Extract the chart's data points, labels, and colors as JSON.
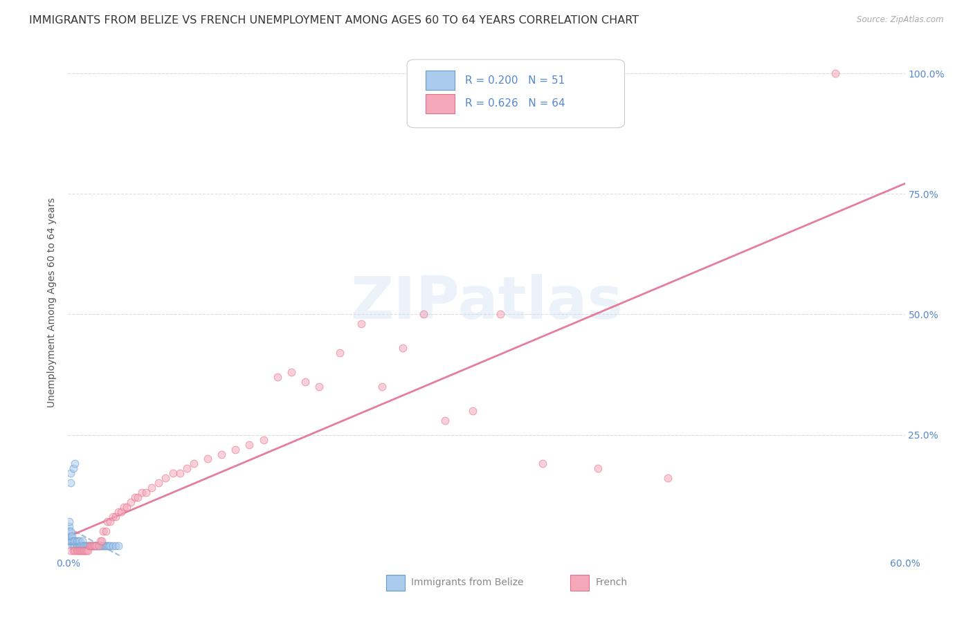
{
  "title": "IMMIGRANTS FROM BELIZE VS FRENCH UNEMPLOYMENT AMONG AGES 60 TO 64 YEARS CORRELATION CHART",
  "source": "Source: ZipAtlas.com",
  "ylabel": "Unemployment Among Ages 60 to 64 years",
  "xlim": [
    0.0,
    0.6
  ],
  "ylim": [
    0.0,
    1.05
  ],
  "xticks": [
    0.0,
    0.1,
    0.2,
    0.3,
    0.4,
    0.5,
    0.6
  ],
  "xtick_labels": [
    "0.0%",
    "",
    "",
    "",
    "",
    "",
    "60.0%"
  ],
  "yticks": [
    0.0,
    0.25,
    0.5,
    0.75,
    1.0
  ],
  "ytick_labels_right": [
    "",
    "25.0%",
    "50.0%",
    "75.0%",
    "100.0%"
  ],
  "legend_entries": [
    {
      "label": "Immigrants from Belize",
      "R": "0.200",
      "N": "51",
      "color": "#aacbee",
      "edge_color": "#6699cc"
    },
    {
      "label": "French",
      "R": "0.626",
      "N": "64",
      "color": "#f5a8ba",
      "edge_color": "#e0708a"
    }
  ],
  "belize_x": [
    0.001,
    0.001,
    0.001,
    0.001,
    0.001,
    0.002,
    0.002,
    0.002,
    0.002,
    0.002,
    0.003,
    0.003,
    0.003,
    0.004,
    0.004,
    0.004,
    0.005,
    0.005,
    0.005,
    0.006,
    0.006,
    0.007,
    0.007,
    0.008,
    0.008,
    0.009,
    0.01,
    0.01,
    0.011,
    0.012,
    0.013,
    0.014,
    0.015,
    0.016,
    0.017,
    0.018,
    0.019,
    0.02,
    0.021,
    0.022,
    0.023,
    0.024,
    0.025,
    0.026,
    0.027,
    0.028,
    0.029,
    0.03,
    0.032,
    0.034,
    0.036
  ],
  "belize_y": [
    0.03,
    0.04,
    0.05,
    0.06,
    0.07,
    0.03,
    0.04,
    0.05,
    0.15,
    0.17,
    0.02,
    0.03,
    0.04,
    0.02,
    0.03,
    0.18,
    0.02,
    0.03,
    0.19,
    0.02,
    0.03,
    0.02,
    0.03,
    0.02,
    0.03,
    0.02,
    0.02,
    0.03,
    0.02,
    0.02,
    0.02,
    0.02,
    0.02,
    0.02,
    0.02,
    0.02,
    0.02,
    0.02,
    0.02,
    0.02,
    0.02,
    0.02,
    0.02,
    0.02,
    0.02,
    0.02,
    0.02,
    0.02,
    0.02,
    0.02,
    0.02
  ],
  "french_x": [
    0.002,
    0.004,
    0.005,
    0.006,
    0.007,
    0.008,
    0.009,
    0.01,
    0.011,
    0.012,
    0.013,
    0.014,
    0.015,
    0.016,
    0.017,
    0.018,
    0.019,
    0.02,
    0.022,
    0.023,
    0.024,
    0.025,
    0.027,
    0.028,
    0.03,
    0.032,
    0.034,
    0.036,
    0.038,
    0.04,
    0.042,
    0.045,
    0.048,
    0.05,
    0.053,
    0.056,
    0.06,
    0.065,
    0.07,
    0.075,
    0.08,
    0.085,
    0.09,
    0.1,
    0.11,
    0.12,
    0.13,
    0.14,
    0.15,
    0.16,
    0.17,
    0.18,
    0.195,
    0.21,
    0.225,
    0.24,
    0.255,
    0.27,
    0.29,
    0.31,
    0.34,
    0.38,
    0.43,
    0.55
  ],
  "french_y": [
    0.01,
    0.01,
    0.01,
    0.01,
    0.01,
    0.01,
    0.01,
    0.01,
    0.01,
    0.01,
    0.01,
    0.01,
    0.02,
    0.02,
    0.02,
    0.02,
    0.02,
    0.02,
    0.02,
    0.03,
    0.03,
    0.05,
    0.05,
    0.07,
    0.07,
    0.08,
    0.08,
    0.09,
    0.09,
    0.1,
    0.1,
    0.11,
    0.12,
    0.12,
    0.13,
    0.13,
    0.14,
    0.15,
    0.16,
    0.17,
    0.17,
    0.18,
    0.19,
    0.2,
    0.21,
    0.22,
    0.23,
    0.24,
    0.37,
    0.38,
    0.36,
    0.35,
    0.42,
    0.48,
    0.35,
    0.43,
    0.5,
    0.28,
    0.3,
    0.5,
    0.19,
    0.18,
    0.16,
    1.0
  ],
  "belize_trendline_color": "#88aacc",
  "belize_trendline_style": "--",
  "french_trendline_color": "#e07090",
  "french_trendline_style": "-",
  "watermark": "ZIPatlas",
  "background_color": "#ffffff",
  "grid_color": "#dddddd",
  "axis_label_color": "#5588cc",
  "title_color": "#333333",
  "title_fontsize": 11.5,
  "ylabel_fontsize": 10,
  "tick_fontsize": 10,
  "scatter_size": 60,
  "scatter_alpha": 0.55,
  "scatter_linewidth": 0.8
}
